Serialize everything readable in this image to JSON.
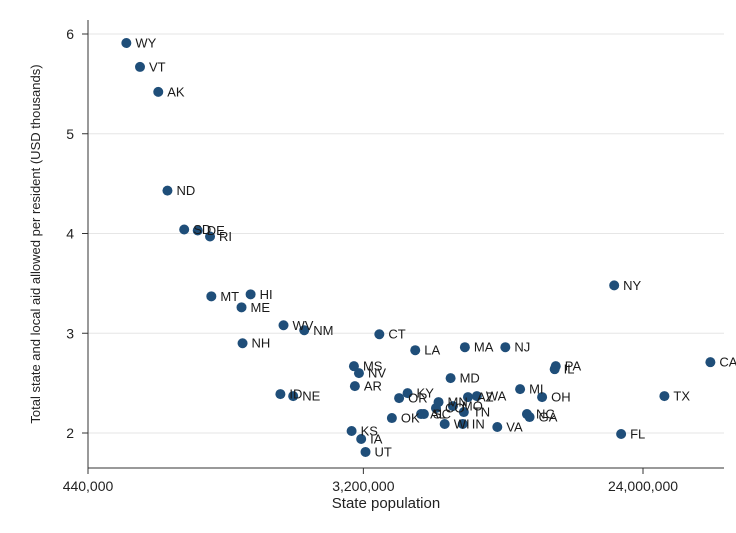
{
  "chart_data": {
    "type": "scatter",
    "title": "",
    "xlabel": "State population",
    "ylabel": "Total state and local aid allowed per resident (USD thousands)",
    "x_scale": "log",
    "x_ticks": [
      440000,
      3200000,
      24000000
    ],
    "x_tick_labels": [
      "440,000",
      "3,200,000",
      "24,000,000"
    ],
    "xlim": [
      440000,
      45000000
    ],
    "y_ticks": [
      2,
      3,
      4,
      5,
      6
    ],
    "y_tick_labels": [
      "2",
      "3",
      "4",
      "5",
      "6"
    ],
    "ylim": [
      1.75,
      6.05
    ],
    "grid": "horizontal",
    "marker_color": "#1f4e79",
    "points": [
      {
        "label": "WY",
        "x": 580000,
        "y": 5.91
      },
      {
        "label": "VT",
        "x": 640000,
        "y": 5.67
      },
      {
        "label": "AK",
        "x": 730000,
        "y": 5.42
      },
      {
        "label": "ND",
        "x": 780000,
        "y": 4.43
      },
      {
        "label": "SD",
        "x": 880000,
        "y": 4.04
      },
      {
        "label": "DE",
        "x": 970000,
        "y": 4.03
      },
      {
        "label": "RI",
        "x": 1060000,
        "y": 3.97
      },
      {
        "label": "MT",
        "x": 1070000,
        "y": 3.37
      },
      {
        "label": "HI",
        "x": 1420000,
        "y": 3.39
      },
      {
        "label": "ME",
        "x": 1330000,
        "y": 3.26
      },
      {
        "label": "NH",
        "x": 1340000,
        "y": 2.9
      },
      {
        "label": "WV",
        "x": 1800000,
        "y": 3.08
      },
      {
        "label": "NM",
        "x": 2090000,
        "y": 3.03
      },
      {
        "label": "ID",
        "x": 1760000,
        "y": 2.39
      },
      {
        "label": "NE",
        "x": 1930000,
        "y": 2.37
      },
      {
        "label": "MS",
        "x": 2990000,
        "y": 2.67
      },
      {
        "label": "NV",
        "x": 3100000,
        "y": 2.6
      },
      {
        "label": "AR",
        "x": 3010000,
        "y": 2.47
      },
      {
        "label": "KS",
        "x": 2940000,
        "y": 2.02
      },
      {
        "label": "IA",
        "x": 3150000,
        "y": 1.94
      },
      {
        "label": "UT",
        "x": 3250000,
        "y": 1.81
      },
      {
        "label": "CT",
        "x": 3590000,
        "y": 2.99
      },
      {
        "label": "OK",
        "x": 3930000,
        "y": 2.15
      },
      {
        "label": "OR",
        "x": 4140000,
        "y": 2.35
      },
      {
        "label": "KY",
        "x": 4400000,
        "y": 2.4
      },
      {
        "label": "LA",
        "x": 4650000,
        "y": 2.83
      },
      {
        "label": "AL",
        "x": 4850000,
        "y": 2.19
      },
      {
        "label": "SC",
        "x": 4950000,
        "y": 2.19
      },
      {
        "label": "CO",
        "x": 5400000,
        "y": 2.25
      },
      {
        "label": "MN",
        "x": 5500000,
        "y": 2.31
      },
      {
        "label": "WI",
        "x": 5750000,
        "y": 2.09
      },
      {
        "label": "MD",
        "x": 6000000,
        "y": 2.55
      },
      {
        "label": "MO",
        "x": 6100000,
        "y": 2.27
      },
      {
        "label": "TN",
        "x": 6600000,
        "y": 2.21
      },
      {
        "label": "IN",
        "x": 6550000,
        "y": 2.09
      },
      {
        "label": "AZ",
        "x": 6800000,
        "y": 2.36
      },
      {
        "label": "MA",
        "x": 6650000,
        "y": 2.86
      },
      {
        "label": "WA",
        "x": 7250000,
        "y": 2.37
      },
      {
        "label": "VA",
        "x": 8400000,
        "y": 2.06
      },
      {
        "label": "NJ",
        "x": 8900000,
        "y": 2.86
      },
      {
        "label": "MI",
        "x": 9900000,
        "y": 2.44
      },
      {
        "label": "NC",
        "x": 10400000,
        "y": 2.19
      },
      {
        "label": "GA",
        "x": 10600000,
        "y": 2.16
      },
      {
        "label": "OH",
        "x": 11600000,
        "y": 2.36
      },
      {
        "label": "IL",
        "x": 12700000,
        "y": 2.64
      },
      {
        "label": "PA",
        "x": 12800000,
        "y": 2.67
      },
      {
        "label": "NY",
        "x": 19500000,
        "y": 3.48
      },
      {
        "label": "FL",
        "x": 20500000,
        "y": 1.99
      },
      {
        "label": "TX",
        "x": 28000000,
        "y": 2.37
      },
      {
        "label": "CA",
        "x": 39000000,
        "y": 2.71
      }
    ]
  }
}
